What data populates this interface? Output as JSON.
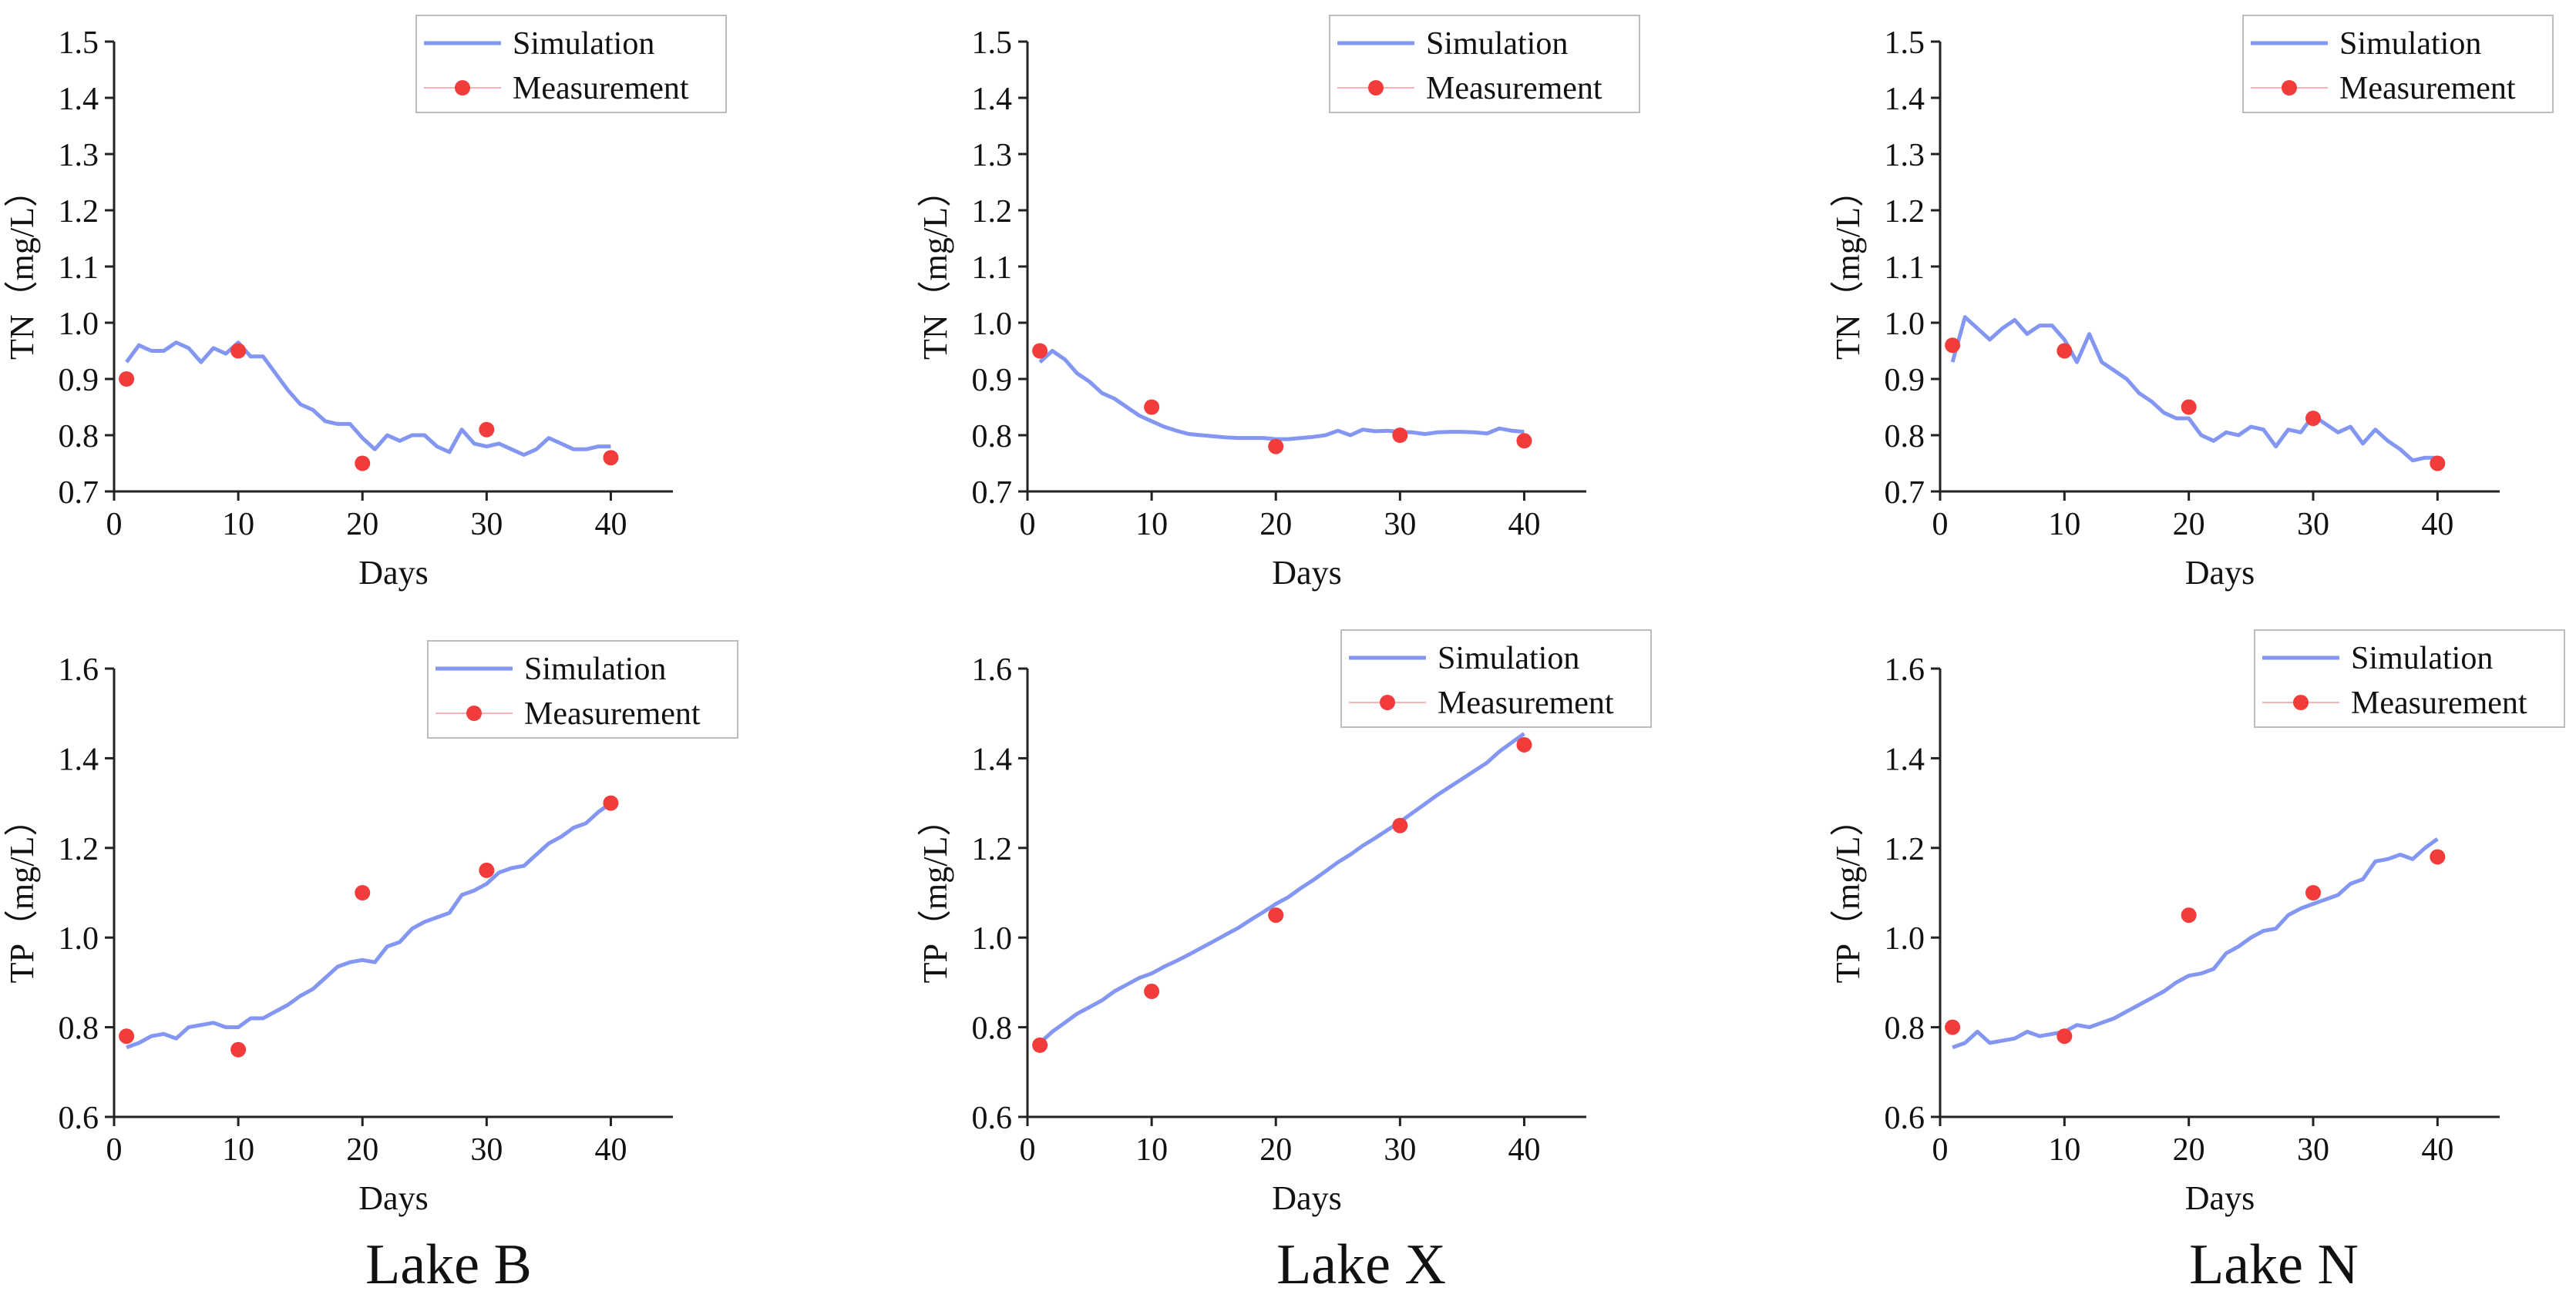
{
  "colors": {
    "simulation": "#8296f2",
    "measurement": "#f23c3c",
    "axis": "#222222",
    "text": "#111111"
  },
  "lake_labels": [
    "Lake B",
    "Lake X",
    "Lake N"
  ],
  "legend": {
    "simulation": "Simulation",
    "measurement": "Measurement"
  },
  "chart_data": [
    {
      "type": "line",
      "lake": "Lake B",
      "variable": "TN",
      "xlabel": "Days",
      "ylabel": "TN（mg/L）",
      "xlim": [
        0,
        45
      ],
      "ylim": [
        0.7,
        1.5
      ],
      "xticks": [
        0,
        10,
        20,
        30,
        40
      ],
      "yticks": [
        0.7,
        0.8,
        0.9,
        1.0,
        1.1,
        1.2,
        1.3,
        1.4,
        1.5
      ],
      "ytick_labels": [
        "0.7",
        "0.8",
        "0.9",
        "1.0",
        "1.1",
        "1.2",
        "1.3",
        "1.4",
        "1.5"
      ],
      "legend_position": "top-right",
      "series": [
        {
          "name": "Simulation",
          "kind": "line",
          "x": [
            1,
            2,
            3,
            4,
            5,
            6,
            7,
            8,
            9,
            10,
            11,
            12,
            13,
            14,
            15,
            16,
            17,
            18,
            19,
            20,
            21,
            22,
            23,
            24,
            25,
            26,
            27,
            28,
            29,
            30,
            31,
            32,
            33,
            34,
            35,
            36,
            37,
            38,
            39,
            40
          ],
          "y": [
            0.93,
            0.96,
            0.95,
            0.95,
            0.965,
            0.955,
            0.93,
            0.955,
            0.945,
            0.965,
            0.94,
            0.94,
            0.91,
            0.88,
            0.855,
            0.845,
            0.825,
            0.82,
            0.82,
            0.795,
            0.775,
            0.8,
            0.79,
            0.8,
            0.8,
            0.78,
            0.77,
            0.81,
            0.785,
            0.78,
            0.785,
            0.775,
            0.765,
            0.775,
            0.795,
            0.785,
            0.775,
            0.775,
            0.78,
            0.78
          ]
        },
        {
          "name": "Measurement",
          "kind": "scatter",
          "x": [
            1,
            10,
            20,
            30,
            40
          ],
          "y": [
            0.9,
            0.95,
            0.75,
            0.81,
            0.76
          ]
        }
      ]
    },
    {
      "type": "line",
      "lake": "Lake X",
      "variable": "TN",
      "xlabel": "Days",
      "ylabel": "TN（mg/L）",
      "xlim": [
        0,
        45
      ],
      "ylim": [
        0.7,
        1.5
      ],
      "xticks": [
        0,
        10,
        20,
        30,
        40
      ],
      "yticks": [
        0.7,
        0.8,
        0.9,
        1.0,
        1.1,
        1.2,
        1.3,
        1.4,
        1.5
      ],
      "ytick_labels": [
        "0.7",
        "0.8",
        "0.9",
        "1.0",
        "1.1",
        "1.2",
        "1.3",
        "1.4",
        "1.5"
      ],
      "legend_position": "top-right",
      "series": [
        {
          "name": "Simulation",
          "kind": "line",
          "x": [
            1,
            2,
            3,
            4,
            5,
            6,
            7,
            8,
            9,
            10,
            11,
            12,
            13,
            14,
            15,
            16,
            17,
            18,
            19,
            20,
            21,
            22,
            23,
            24,
            25,
            26,
            27,
            28,
            29,
            30,
            31,
            32,
            33,
            34,
            35,
            36,
            37,
            38,
            39,
            40
          ],
          "y": [
            0.93,
            0.95,
            0.935,
            0.91,
            0.895,
            0.875,
            0.865,
            0.85,
            0.835,
            0.825,
            0.815,
            0.808,
            0.802,
            0.8,
            0.798,
            0.796,
            0.795,
            0.795,
            0.795,
            0.793,
            0.793,
            0.795,
            0.797,
            0.8,
            0.808,
            0.8,
            0.81,
            0.807,
            0.808,
            0.806,
            0.805,
            0.802,
            0.805,
            0.806,
            0.806,
            0.805,
            0.803,
            0.812,
            0.808,
            0.806
          ]
        },
        {
          "name": "Measurement",
          "kind": "scatter",
          "x": [
            1,
            10,
            20,
            30,
            40
          ],
          "y": [
            0.95,
            0.85,
            0.78,
            0.8,
            0.79
          ]
        }
      ]
    },
    {
      "type": "line",
      "lake": "Lake N",
      "variable": "TN",
      "xlabel": "Days",
      "ylabel": "TN（mg/L）",
      "xlim": [
        0,
        45
      ],
      "ylim": [
        0.7,
        1.5
      ],
      "xticks": [
        0,
        10,
        20,
        30,
        40
      ],
      "yticks": [
        0.7,
        0.8,
        0.9,
        1.0,
        1.1,
        1.2,
        1.3,
        1.4,
        1.5
      ],
      "ytick_labels": [
        "0.7",
        "0.8",
        "0.9",
        "1.0",
        "1.1",
        "1.2",
        "1.3",
        "1.4",
        "1.5"
      ],
      "legend_position": "top-right",
      "series": [
        {
          "name": "Simulation",
          "kind": "line",
          "x": [
            1,
            2,
            3,
            4,
            5,
            6,
            7,
            8,
            9,
            10,
            11,
            12,
            13,
            14,
            15,
            16,
            17,
            18,
            19,
            20,
            21,
            22,
            23,
            24,
            25,
            26,
            27,
            28,
            29,
            30,
            31,
            32,
            33,
            34,
            35,
            36,
            37,
            38,
            39,
            40
          ],
          "y": [
            0.93,
            1.01,
            0.99,
            0.97,
            0.99,
            1.005,
            0.98,
            0.995,
            0.995,
            0.97,
            0.93,
            0.98,
            0.93,
            0.915,
            0.9,
            0.875,
            0.86,
            0.84,
            0.83,
            0.83,
            0.8,
            0.79,
            0.805,
            0.8,
            0.815,
            0.81,
            0.78,
            0.81,
            0.805,
            0.835,
            0.82,
            0.805,
            0.815,
            0.785,
            0.81,
            0.79,
            0.775,
            0.755,
            0.76,
            0.76
          ]
        },
        {
          "name": "Measurement",
          "kind": "scatter",
          "x": [
            1,
            10,
            20,
            30,
            40
          ],
          "y": [
            0.96,
            0.95,
            0.85,
            0.83,
            0.75
          ]
        }
      ]
    },
    {
      "type": "line",
      "lake": "Lake B",
      "variable": "TP",
      "xlabel": "Days",
      "ylabel": "TP（mg/L）",
      "xlim": [
        0,
        45
      ],
      "ylim": [
        0.6,
        1.6
      ],
      "xticks": [
        0,
        10,
        20,
        30,
        40
      ],
      "yticks": [
        0.6,
        0.8,
        1.0,
        1.2,
        1.4,
        1.6
      ],
      "ytick_labels": [
        "0.6",
        "0.8",
        "1.0",
        "1.2",
        "1.4",
        "1.6"
      ],
      "legend_position": "top-right",
      "series": [
        {
          "name": "Simulation",
          "kind": "line",
          "x": [
            1,
            2,
            3,
            4,
            5,
            6,
            7,
            8,
            9,
            10,
            11,
            12,
            13,
            14,
            15,
            16,
            17,
            18,
            19,
            20,
            21,
            22,
            23,
            24,
            25,
            26,
            27,
            28,
            29,
            30,
            31,
            32,
            33,
            34,
            35,
            36,
            37,
            38,
            39,
            40
          ],
          "y": [
            0.755,
            0.765,
            0.78,
            0.785,
            0.775,
            0.8,
            0.805,
            0.81,
            0.8,
            0.8,
            0.82,
            0.82,
            0.835,
            0.85,
            0.87,
            0.885,
            0.91,
            0.935,
            0.945,
            0.95,
            0.945,
            0.98,
            0.99,
            1.02,
            1.035,
            1.045,
            1.055,
            1.095,
            1.105,
            1.12,
            1.145,
            1.155,
            1.16,
            1.185,
            1.21,
            1.225,
            1.245,
            1.255,
            1.28,
            1.3
          ]
        },
        {
          "name": "Measurement",
          "kind": "scatter",
          "x": [
            1,
            10,
            20,
            30,
            40
          ],
          "y": [
            0.78,
            0.75,
            1.1,
            1.15,
            1.3
          ]
        }
      ]
    },
    {
      "type": "line",
      "lake": "Lake X",
      "variable": "TP",
      "xlabel": "Days",
      "ylabel": "TP（mg/L）",
      "xlim": [
        0,
        45
      ],
      "ylim": [
        0.6,
        1.6
      ],
      "xticks": [
        0,
        10,
        20,
        30,
        40
      ],
      "yticks": [
        0.6,
        0.8,
        1.0,
        1.2,
        1.4,
        1.6
      ],
      "ytick_labels": [
        "0.6",
        "0.8",
        "1.0",
        "1.2",
        "1.4",
        "1.6"
      ],
      "legend_position": "top-right",
      "series": [
        {
          "name": "Simulation",
          "kind": "line",
          "x": [
            1,
            2,
            3,
            4,
            5,
            6,
            7,
            8,
            9,
            10,
            11,
            12,
            13,
            14,
            15,
            16,
            17,
            18,
            19,
            20,
            21,
            22,
            23,
            24,
            25,
            26,
            27,
            28,
            29,
            30,
            31,
            32,
            33,
            34,
            35,
            36,
            37,
            38,
            39,
            40
          ],
          "y": [
            0.765,
            0.79,
            0.81,
            0.83,
            0.845,
            0.86,
            0.88,
            0.895,
            0.91,
            0.92,
            0.935,
            0.948,
            0.962,
            0.977,
            0.992,
            1.007,
            1.022,
            1.04,
            1.057,
            1.075,
            1.09,
            1.11,
            1.128,
            1.148,
            1.168,
            1.185,
            1.205,
            1.222,
            1.24,
            1.258,
            1.278,
            1.298,
            1.318,
            1.336,
            1.354,
            1.372,
            1.39,
            1.415,
            1.435,
            1.455
          ]
        },
        {
          "name": "Measurement",
          "kind": "scatter",
          "x": [
            1,
            10,
            20,
            30,
            40
          ],
          "y": [
            0.76,
            0.88,
            1.05,
            1.25,
            1.43
          ]
        }
      ]
    },
    {
      "type": "line",
      "lake": "Lake N",
      "variable": "TP",
      "xlabel": "Days",
      "ylabel": "TP（mg/L）",
      "xlim": [
        0,
        45
      ],
      "ylim": [
        0.6,
        1.6
      ],
      "xticks": [
        0,
        10,
        20,
        30,
        40
      ],
      "yticks": [
        0.6,
        0.8,
        1.0,
        1.2,
        1.4,
        1.6
      ],
      "ytick_labels": [
        "0.6",
        "0.8",
        "1.0",
        "1.2",
        "1.4",
        "1.6"
      ],
      "legend_position": "top-right",
      "series": [
        {
          "name": "Simulation",
          "kind": "line",
          "x": [
            1,
            2,
            3,
            4,
            5,
            6,
            7,
            8,
            9,
            10,
            11,
            12,
            13,
            14,
            15,
            16,
            17,
            18,
            19,
            20,
            21,
            22,
            23,
            24,
            25,
            26,
            27,
            28,
            29,
            30,
            31,
            32,
            33,
            34,
            35,
            36,
            37,
            38,
            39,
            40
          ],
          "y": [
            0.755,
            0.765,
            0.79,
            0.765,
            0.77,
            0.775,
            0.79,
            0.78,
            0.785,
            0.79,
            0.805,
            0.8,
            0.81,
            0.82,
            0.835,
            0.85,
            0.865,
            0.88,
            0.9,
            0.915,
            0.92,
            0.93,
            0.965,
            0.98,
            1.0,
            1.015,
            1.02,
            1.05,
            1.065,
            1.075,
            1.085,
            1.095,
            1.12,
            1.13,
            1.17,
            1.175,
            1.185,
            1.175,
            1.2,
            1.22
          ]
        },
        {
          "name": "Measurement",
          "kind": "scatter",
          "x": [
            1,
            10,
            20,
            30,
            40
          ],
          "y": [
            0.8,
            0.78,
            1.05,
            1.1,
            1.18
          ]
        }
      ]
    }
  ]
}
